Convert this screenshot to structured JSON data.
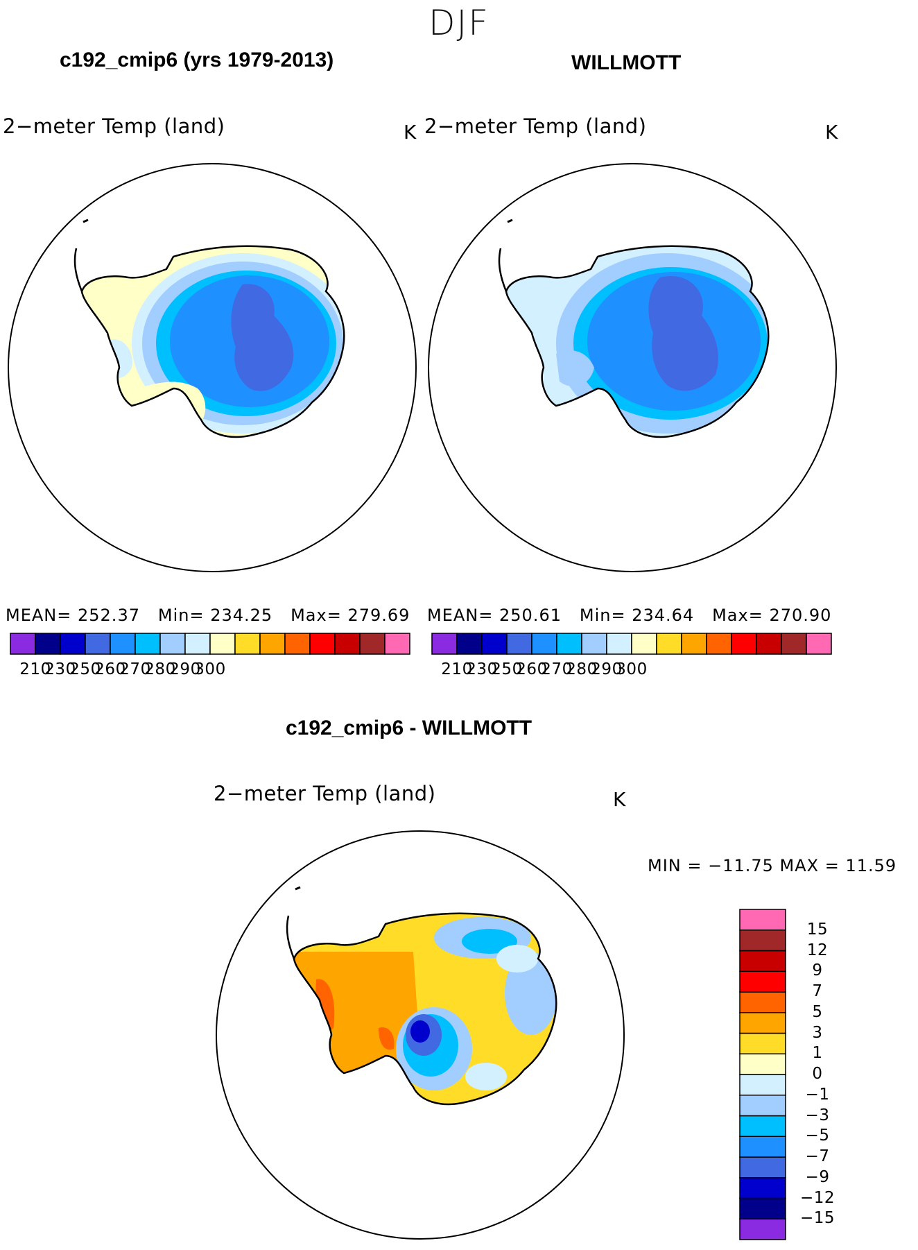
{
  "season": "DJF",
  "panels": [
    {
      "id": "model",
      "title": "c192_cmip6 (yrs 1979-2013)",
      "variable": "2−meter Temp (land)",
      "units": "K",
      "stats": {
        "mean_label": "MEAN=",
        "mean": "252.37",
        "min_label": "Min=",
        "min": "234.25",
        "max_label": "Max=",
        "max": "279.69"
      }
    },
    {
      "id": "obs",
      "title": "WILLMOTT",
      "variable": "2−meter Temp (land)",
      "units": "K",
      "stats": {
        "mean_label": "MEAN=",
        "mean": "250.61",
        "min_label": "Min=",
        "min": "234.64",
        "max_label": "Max=",
        "max": "270.90"
      }
    },
    {
      "id": "diff",
      "title": "c192_cmip6 - WILLMOTT",
      "variable": "2−meter Temp (land)",
      "units": "K",
      "stats": {
        "text": "MIN = −11.75 MAX =   11.59"
      }
    }
  ],
  "abs_colorbar": {
    "colors": [
      "#8a2be2",
      "#00008b",
      "#0000cd",
      "#4169e1",
      "#1e90ff",
      "#00bfff",
      "#a2cdff",
      "#d2f0ff",
      "#ffffc8",
      "#ffdc28",
      "#ffa500",
      "#ff6400",
      "#ff0000",
      "#c80000",
      "#a02828",
      "#ff69b4"
    ],
    "tick_labels": [
      "210",
      "230",
      "250",
      "260",
      "270",
      "280",
      "290",
      "300"
    ]
  },
  "diff_colorbar": {
    "colors": [
      "#8a2be2",
      "#00008b",
      "#0000cd",
      "#4169e1",
      "#1e90ff",
      "#00bfff",
      "#a2cdff",
      "#d2f0ff",
      "#ffffc8",
      "#ffdc28",
      "#ffa500",
      "#ff6400",
      "#ff0000",
      "#c80000",
      "#a02828",
      "#ff69b4"
    ],
    "tick_labels": [
      "−15",
      "−12",
      "−9",
      "−7",
      "−5",
      "−3",
      "−1",
      "0",
      "1",
      "3",
      "5",
      "7",
      "9",
      "12",
      "15"
    ]
  }
}
